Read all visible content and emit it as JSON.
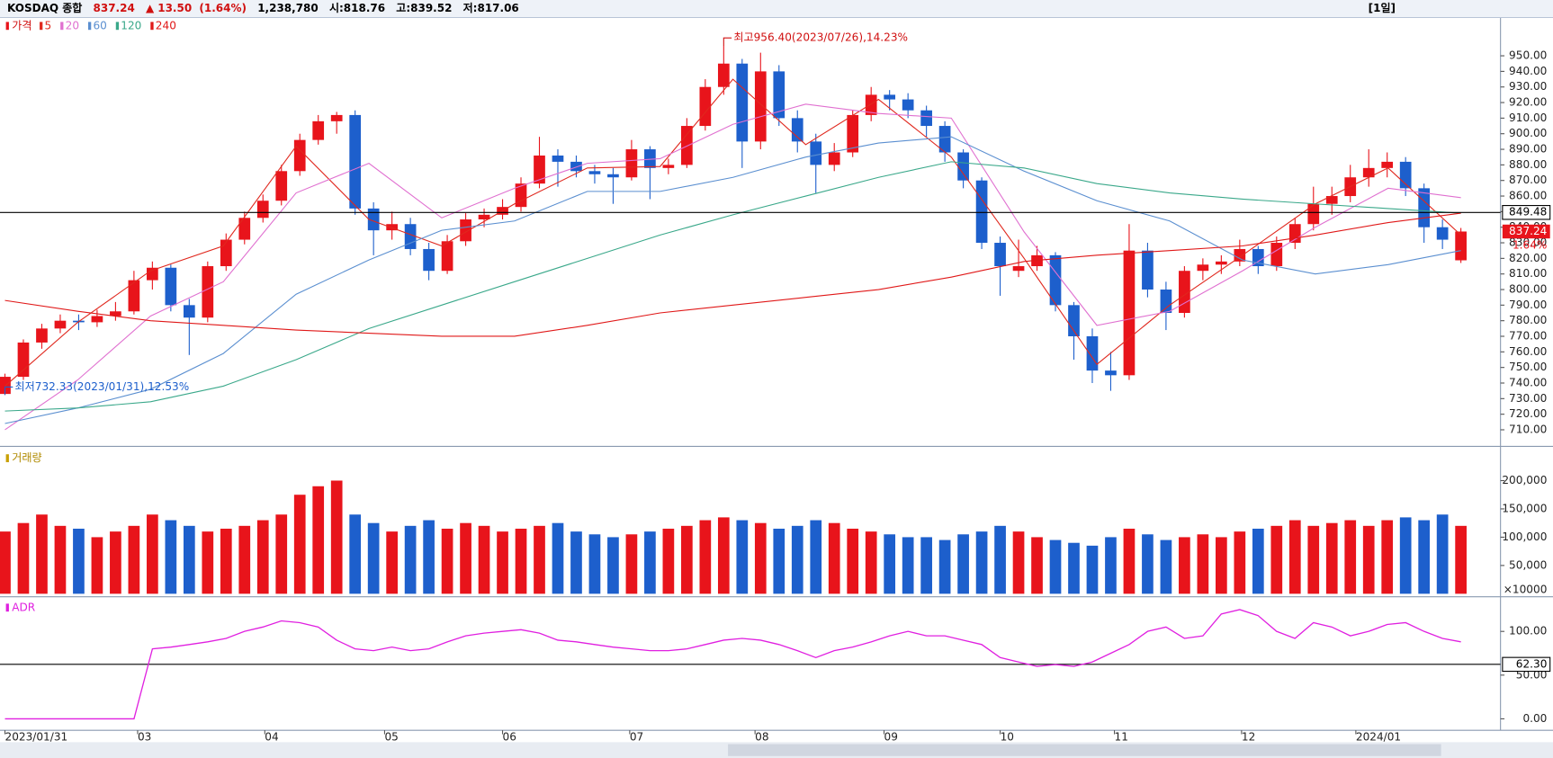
{
  "header": {
    "name": "KOSDAQ 종합",
    "price": "837.24",
    "arrow": "▲",
    "change": "13.50",
    "change_pct": "(1.64%)",
    "volume": "1,238,780",
    "open": "시:818.76",
    "high": "고:839.52",
    "low": "저:817.06",
    "period": "[1일]"
  },
  "chart_data": [
    {
      "type": "candlestick",
      "legend_title": "가격",
      "up_color": "#e8141b",
      "down_color": "#1d5fcc",
      "ohlc": [
        [
          733,
          746,
          732.33,
          744
        ],
        [
          744,
          768,
          742,
          766
        ],
        [
          766,
          778,
          762,
          775
        ],
        [
          775,
          784,
          772,
          780
        ],
        [
          780,
          784,
          774,
          779
        ],
        [
          779,
          787,
          776,
          783
        ],
        [
          783,
          792,
          780,
          786
        ],
        [
          786,
          812,
          784,
          806
        ],
        [
          806,
          818,
          800,
          814
        ],
        [
          814,
          816,
          786,
          790
        ],
        [
          790,
          794,
          758,
          782
        ],
        [
          782,
          818,
          779,
          815
        ],
        [
          815,
          836,
          812,
          832
        ],
        [
          832,
          850,
          829,
          846
        ],
        [
          846,
          861,
          843,
          857
        ],
        [
          857,
          880,
          854,
          876
        ],
        [
          876,
          900,
          873,
          896
        ],
        [
          896,
          912,
          893,
          908
        ],
        [
          908,
          914,
          900,
          912
        ],
        [
          912,
          915,
          848,
          852
        ],
        [
          852,
          856,
          822,
          838
        ],
        [
          838,
          850,
          832,
          842
        ],
        [
          842,
          846,
          822,
          826
        ],
        [
          826,
          830,
          806,
          812
        ],
        [
          812,
          835,
          810,
          831
        ],
        [
          831,
          849,
          828,
          845
        ],
        [
          845,
          852,
          840,
          848
        ],
        [
          848,
          858,
          845,
          853
        ],
        [
          853,
          872,
          850,
          868
        ],
        [
          868,
          898,
          865,
          886
        ],
        [
          886,
          890,
          866,
          882
        ],
        [
          882,
          886,
          872,
          876
        ],
        [
          876,
          880,
          868,
          874
        ],
        [
          874,
          878,
          855,
          872
        ],
        [
          872,
          896,
          870,
          890
        ],
        [
          890,
          892,
          858,
          878
        ],
        [
          878,
          884,
          874,
          880
        ],
        [
          880,
          910,
          878,
          905
        ],
        [
          905,
          935,
          902,
          930
        ],
        [
          930,
          956.4,
          925,
          945
        ],
        [
          945,
          948,
          878,
          895
        ],
        [
          895,
          952,
          890,
          940
        ],
        [
          940,
          944,
          905,
          910
        ],
        [
          910,
          915,
          888,
          895
        ],
        [
          895,
          900,
          862,
          880
        ],
        [
          880,
          894,
          876,
          888
        ],
        [
          888,
          915,
          885,
          912
        ],
        [
          912,
          930,
          908,
          925
        ],
        [
          925,
          928,
          915,
          922
        ],
        [
          922,
          926,
          910,
          915
        ],
        [
          915,
          918,
          898,
          905
        ],
        [
          905,
          908,
          882,
          888
        ],
        [
          888,
          890,
          865,
          870
        ],
        [
          870,
          872,
          826,
          830
        ],
        [
          830,
          834,
          796,
          815
        ],
        [
          812,
          832,
          808,
          815
        ],
        [
          815,
          828,
          812,
          822
        ],
        [
          822,
          824,
          786,
          790
        ],
        [
          790,
          792,
          755,
          770
        ],
        [
          770,
          775,
          740,
          748
        ],
        [
          748,
          760,
          735,
          745
        ],
        [
          745,
          842,
          742,
          825
        ],
        [
          825,
          830,
          795,
          800
        ],
        [
          800,
          805,
          774,
          785
        ],
        [
          785,
          815,
          782,
          812
        ],
        [
          812,
          820,
          806,
          816
        ],
        [
          816,
          822,
          810,
          818
        ],
        [
          818,
          832,
          815,
          826
        ],
        [
          826,
          828,
          810,
          815
        ],
        [
          815,
          834,
          812,
          830
        ],
        [
          830,
          846,
          826,
          842
        ],
        [
          842,
          866,
          838,
          855
        ],
        [
          855,
          866,
          848,
          860
        ],
        [
          860,
          880,
          856,
          872
        ],
        [
          872,
          890,
          866,
          878
        ],
        [
          878,
          888,
          872,
          882
        ],
        [
          882,
          885,
          860,
          865
        ],
        [
          865,
          868,
          830,
          840
        ],
        [
          840,
          845,
          826,
          832
        ],
        [
          818.76,
          839.52,
          817.06,
          837.24
        ]
      ],
      "ma": [
        {
          "name": "5",
          "color": "#e0281e",
          "values": [
            738,
            779,
            812,
            828,
            892,
            845,
            828,
            855,
            878,
            879,
            935,
            893,
            922,
            885,
            820,
            752,
            790,
            822,
            855,
            878,
            835
          ]
        },
        {
          "name": "20",
          "color": "#e070d0",
          "values": [
            710,
            742,
            783,
            805,
            862,
            881,
            846,
            865,
            881,
            884,
            906,
            919,
            913,
            910,
            837,
            777,
            786,
            812,
            840,
            865,
            859
          ]
        },
        {
          "name": "60",
          "color": "#5b8fd0",
          "values": [
            714,
            724,
            736,
            759,
            797,
            819,
            838,
            844,
            863,
            863,
            872,
            885,
            894,
            898,
            876,
            857,
            844,
            819,
            810,
            816,
            825
          ]
        },
        {
          "name": "120",
          "color": "#3aa88a",
          "values": [
            722,
            724,
            728,
            738,
            755,
            775,
            790,
            805,
            820,
            835,
            848,
            860,
            872,
            882,
            878,
            868,
            862,
            858,
            855,
            852,
            849
          ]
        },
        {
          "name": "240",
          "color": "#e01818",
          "values": [
            793,
            786,
            780,
            777,
            774,
            772,
            770,
            770,
            777,
            785,
            790,
            795,
            800,
            808,
            818,
            822,
            825,
            828,
            835,
            843,
            849
          ]
        }
      ],
      "ylim": [
        700,
        973
      ],
      "yticks": [
        {
          "value": 710,
          "label": "710.00"
        },
        {
          "value": 720,
          "label": "720.00"
        },
        {
          "value": 730,
          "label": "730.00"
        },
        {
          "value": 740,
          "label": "740.00"
        },
        {
          "value": 750,
          "label": "750.00"
        },
        {
          "value": 760,
          "label": "760.00"
        },
        {
          "value": 770,
          "label": "770.00"
        },
        {
          "value": 780,
          "label": "780.00"
        },
        {
          "value": 790,
          "label": "790.00"
        },
        {
          "value": 800,
          "label": "800.00"
        },
        {
          "value": 810,
          "label": "810.00"
        },
        {
          "value": 820,
          "label": "820.00"
        },
        {
          "value": 830,
          "label": "830.00"
        },
        {
          "value": 840,
          "label": "840.00"
        },
        {
          "value": 850,
          "label": "850.00"
        },
        {
          "value": 860,
          "label": "860.00"
        },
        {
          "value": 870,
          "label": "870.00"
        },
        {
          "value": 880,
          "label": "880.00"
        },
        {
          "value": 890,
          "label": "890.00"
        },
        {
          "value": 900,
          "label": "900.00"
        },
        {
          "value": 910,
          "label": "910.00"
        },
        {
          "value": 920,
          "label": "920.00"
        },
        {
          "value": 930,
          "label": "930.00"
        },
        {
          "value": 940,
          "label": "940.00"
        },
        {
          "value": 950,
          "label": "950.00"
        }
      ],
      "xticks": [
        {
          "value": 0,
          "label": "2023/01/31"
        },
        {
          "value": 7.2,
          "label": "03"
        },
        {
          "value": 14.1,
          "label": "04"
        },
        {
          "value": 20.6,
          "label": "05"
        },
        {
          "value": 27,
          "label": "06"
        },
        {
          "value": 33.9,
          "label": "07"
        },
        {
          "value": 40.7,
          "label": "08"
        },
        {
          "value": 47.7,
          "label": "09"
        },
        {
          "value": 54,
          "label": "10"
        },
        {
          "value": 60.2,
          "label": "11"
        },
        {
          "value": 67.1,
          "label": "12"
        },
        {
          "value": 73.3,
          "label": "2024/01"
        }
      ],
      "ref_line": {
        "value": 849.48,
        "label": "849.48"
      },
      "last_label": "837.24",
      "change_label": "1.64%",
      "annotations": [
        {
          "text": "최고956.40(2023/07/26),14.23%",
          "index": 39,
          "value": 956.4,
          "color": "#d01010"
        },
        {
          "text": "최저732.33(2023/01/31),12.53%",
          "index": 0,
          "value": 732.33,
          "color": "#1d5fcc"
        }
      ]
    },
    {
      "type": "bar",
      "title": "거래량",
      "unit_label": "×10000",
      "values": [
        110000,
        125000,
        140000,
        120000,
        115000,
        100000,
        110000,
        120000,
        140000,
        130000,
        120000,
        110000,
        115000,
        120000,
        130000,
        140000,
        175000,
        190000,
        200000,
        140000,
        125000,
        110000,
        120000,
        130000,
        115000,
        125000,
        120000,
        110000,
        115000,
        120000,
        125000,
        110000,
        105000,
        100000,
        105000,
        110000,
        115000,
        120000,
        130000,
        135000,
        130000,
        125000,
        115000,
        120000,
        130000,
        125000,
        115000,
        110000,
        105000,
        100000,
        100000,
        95000,
        105000,
        110000,
        120000,
        110000,
        100000,
        95000,
        90000,
        85000,
        100000,
        115000,
        105000,
        95000,
        100000,
        105000,
        100000,
        110000,
        115000,
        120000,
        130000,
        120000,
        125000,
        130000,
        120000,
        130000,
        135000,
        130000,
        140000,
        120000
      ],
      "ylim": [
        0,
        250000
      ],
      "yticks": [
        {
          "value": 50000,
          "label": "50,000"
        },
        {
          "value": 100000,
          "label": "100,000"
        },
        {
          "value": 150000,
          "label": "150,000"
        },
        {
          "value": 200000,
          "label": "200,000"
        }
      ]
    },
    {
      "type": "line",
      "title": "ADR",
      "color": "#e020e0",
      "values": [
        0,
        0,
        0,
        0,
        0,
        0,
        0,
        0,
        80,
        82,
        85,
        88,
        92,
        100,
        105,
        112,
        110,
        105,
        90,
        80,
        78,
        82,
        78,
        80,
        88,
        95,
        98,
        100,
        102,
        98,
        90,
        88,
        85,
        82,
        80,
        78,
        78,
        80,
        85,
        90,
        92,
        90,
        85,
        78,
        70,
        78,
        82,
        88,
        95,
        100,
        95,
        95,
        90,
        85,
        70,
        65,
        60,
        62,
        60,
        65,
        75,
        85,
        100,
        105,
        92,
        95,
        120,
        125,
        118,
        100,
        92,
        110,
        105,
        95,
        100,
        108,
        110,
        100,
        92,
        88
      ],
      "ylim": [
        -12,
        134
      ],
      "yticks": [
        {
          "value": 0,
          "label": "0.00"
        },
        {
          "value": 50,
          "label": "50.00"
        },
        {
          "value": 100,
          "label": "100.00"
        }
      ],
      "ref_line": {
        "value": 62.3,
        "label": "62.30"
      }
    }
  ]
}
